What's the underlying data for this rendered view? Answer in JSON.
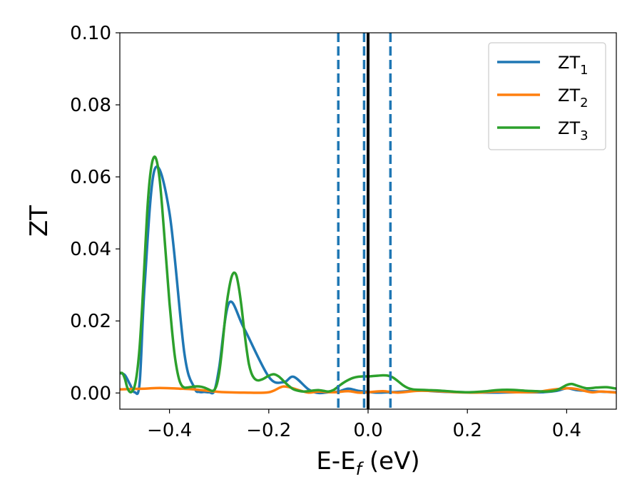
{
  "chart_data": {
    "type": "line",
    "title": "",
    "xlabel": "E-E",
    "xlabel_sub": "f",
    "xlabel_unit": " (eV)",
    "ylabel": "ZT",
    "xlim": [
      -0.5,
      0.5
    ],
    "ylim": [
      -0.0045,
      0.1
    ],
    "xticks": [
      -0.4,
      -0.2,
      0.0,
      0.2,
      0.4
    ],
    "xtick_labels": [
      "−0.4",
      "−0.2",
      "0.0",
      "0.2",
      "0.4"
    ],
    "yticks": [
      0.0,
      0.02,
      0.04,
      0.06,
      0.08,
      0.1
    ],
    "ytick_labels": [
      "0.00",
      "0.02",
      "0.04",
      "0.06",
      "0.08",
      "0.10"
    ],
    "grid": false,
    "legend_position": "top-right",
    "vertical_lines": [
      {
        "x": -0.06,
        "style": "dashed",
        "color": "#1f77b4"
      },
      {
        "x": -0.008,
        "style": "dashed",
        "color": "#1f77b4"
      },
      {
        "x": 0.045,
        "style": "dashed",
        "color": "#1f77b4"
      },
      {
        "x": 0.0,
        "style": "solid",
        "color": "#000000"
      }
    ],
    "series": [
      {
        "name": "ZT",
        "name_sub": "1",
        "color": "#1f77b4",
        "x": [
          -0.5,
          -0.49,
          -0.48,
          -0.47,
          -0.46,
          -0.45,
          -0.43,
          -0.4,
          -0.37,
          -0.35,
          -0.34,
          -0.33,
          -0.32,
          -0.31,
          -0.3,
          -0.28,
          -0.25,
          -0.2,
          -0.17,
          -0.15,
          -0.12,
          -0.1,
          -0.08,
          -0.06,
          -0.04,
          -0.02,
          0.0,
          0.02,
          0.04,
          0.06,
          0.08,
          0.1,
          0.13,
          0.16,
          0.2,
          0.25,
          0.3,
          0.35,
          0.38,
          0.4,
          0.42,
          0.45,
          0.48,
          0.5
        ],
        "y": [
          0.0055,
          0.005,
          0.0025,
          0.0002,
          0.003,
          0.03,
          0.062,
          0.05,
          0.011,
          0.0015,
          0.0003,
          0.0003,
          0.0002,
          0.0005,
          0.007,
          0.025,
          0.018,
          0.0045,
          0.003,
          0.0045,
          0.001,
          0.0,
          0.0002,
          0.0004,
          0.0012,
          0.0006,
          0.0003,
          0.0001,
          0.0002,
          0.0003,
          0.0005,
          0.0008,
          0.0005,
          0.0003,
          0.0002,
          0.0001,
          0.0002,
          0.0002,
          0.0006,
          0.0013,
          0.0008,
          0.0005,
          0.0003,
          0.0002
        ]
      },
      {
        "name": "ZT",
        "name_sub": "2",
        "color": "#ff7f0e",
        "x": [
          -0.5,
          -0.45,
          -0.42,
          -0.38,
          -0.35,
          -0.3,
          -0.25,
          -0.2,
          -0.17,
          -0.14,
          -0.12,
          -0.1,
          -0.07,
          -0.04,
          -0.02,
          0.0,
          0.03,
          0.06,
          0.1,
          0.14,
          0.18,
          0.22,
          0.26,
          0.3,
          0.34,
          0.37,
          0.4,
          0.42,
          0.45,
          0.47,
          0.5
        ],
        "y": [
          0.001,
          0.0012,
          0.0014,
          0.0012,
          0.001,
          0.0003,
          0.0001,
          0.0002,
          0.0018,
          0.0008,
          0.0001,
          0.0004,
          0.0002,
          0.0005,
          0.0001,
          0.0002,
          0.0005,
          0.0001,
          0.0006,
          0.0005,
          0.0002,
          0.0001,
          0.0004,
          0.0002,
          0.0003,
          0.0009,
          0.0013,
          0.0011,
          0.0002,
          0.0004,
          0.0001
        ]
      },
      {
        "name": "ZT",
        "name_sub": "3",
        "color": "#2ca02c",
        "x": [
          -0.5,
          -0.495,
          -0.49,
          -0.485,
          -0.48,
          -0.475,
          -0.47,
          -0.465,
          -0.46,
          -0.455,
          -0.45,
          -0.445,
          -0.44,
          -0.435,
          -0.43,
          -0.425,
          -0.42,
          -0.415,
          -0.41,
          -0.405,
          -0.4,
          -0.395,
          -0.39,
          -0.385,
          -0.38,
          -0.375,
          -0.37,
          -0.365,
          -0.36,
          -0.355,
          -0.35,
          -0.34,
          -0.33,
          -0.32,
          -0.315,
          -0.31,
          -0.305,
          -0.3,
          -0.295,
          -0.29,
          -0.285,
          -0.28,
          -0.275,
          -0.27,
          -0.265,
          -0.26,
          -0.255,
          -0.25,
          -0.245,
          -0.24,
          -0.235,
          -0.23,
          -0.225,
          -0.22,
          -0.215,
          -0.21,
          -0.2,
          -0.19,
          -0.18,
          -0.17,
          -0.16,
          -0.15,
          -0.14,
          -0.13,
          -0.12,
          -0.11,
          -0.1,
          -0.09,
          -0.08,
          -0.07,
          -0.06,
          -0.05,
          -0.04,
          -0.03,
          -0.02,
          -0.01,
          0.0,
          0.01,
          0.02,
          0.03,
          0.04,
          0.05,
          0.06,
          0.07,
          0.08,
          0.09,
          0.1,
          0.12,
          0.14,
          0.16,
          0.18,
          0.2,
          0.22,
          0.24,
          0.26,
          0.28,
          0.3,
          0.32,
          0.34,
          0.36,
          0.38,
          0.4,
          0.41,
          0.42,
          0.44,
          0.46,
          0.48,
          0.5
        ],
        "y": [
          0.0055,
          0.0055,
          0.004,
          0.0015,
          0.0003,
          0.0005,
          0.002,
          0.006,
          0.013,
          0.024,
          0.037,
          0.05,
          0.059,
          0.064,
          0.0656,
          0.064,
          0.0595,
          0.052,
          0.043,
          0.034,
          0.025,
          0.0175,
          0.011,
          0.0065,
          0.0035,
          0.002,
          0.0015,
          0.0015,
          0.0016,
          0.0017,
          0.0018,
          0.0018,
          0.0015,
          0.0009,
          0.0006,
          0.0008,
          0.0022,
          0.0055,
          0.011,
          0.018,
          0.0245,
          0.029,
          0.0322,
          0.0334,
          0.0325,
          0.029,
          0.024,
          0.018,
          0.0125,
          0.008,
          0.0055,
          0.0042,
          0.0036,
          0.0035,
          0.0037,
          0.004,
          0.0048,
          0.0052,
          0.0046,
          0.0033,
          0.002,
          0.001,
          0.0006,
          0.0004,
          0.0005,
          0.0007,
          0.0008,
          0.0006,
          0.0004,
          0.0008,
          0.0018,
          0.0028,
          0.0036,
          0.0042,
          0.0045,
          0.0046,
          0.0046,
          0.0047,
          0.0048,
          0.0049,
          0.0048,
          0.0043,
          0.0033,
          0.0022,
          0.0014,
          0.001,
          0.0009,
          0.0008,
          0.0007,
          0.0005,
          0.0003,
          0.0002,
          0.0003,
          0.0005,
          0.0008,
          0.0009,
          0.0008,
          0.0006,
          0.0005,
          0.0004,
          0.0008,
          0.0022,
          0.0025,
          0.0021,
          0.0013,
          0.0015,
          0.0016,
          0.0012
        ]
      }
    ]
  }
}
